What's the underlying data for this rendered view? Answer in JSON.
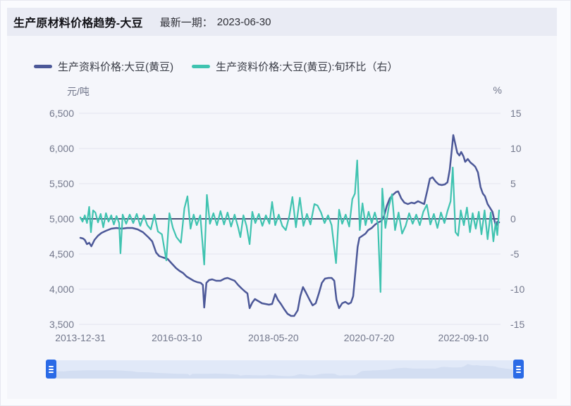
{
  "page": {
    "title": "生产原材料价格趋势-大豆",
    "subtitle_label": "最新一期：",
    "latest_date": "2023-06-30"
  },
  "legend": {
    "items": [
      {
        "label": "生产资料价格:大豆(黄豆)",
        "color": "#4c5898"
      },
      {
        "label": "生产资料价格:大豆(黄豆):旬环比（右）",
        "color": "#3fc3b0"
      }
    ]
  },
  "datazoom": {
    "left_handle_icon": "grip-lines-icon",
    "right_handle_icon": "grip-lines-icon",
    "handle_color": "#2a6ae6",
    "track_color": "#e1e9f8",
    "silhouette_color": "#d3def2"
  },
  "colors": {
    "header_bg": "#e9ebf4",
    "card_bg": "#f5f6fb",
    "grid_line": "#e2e4ef",
    "zero_line": "#4a5076",
    "axis_text": "#73788c",
    "price_line": "#4c5898",
    "pct_line": "#3fc3b0"
  },
  "chart_data": {
    "type": "line",
    "title": "生产原材料价格趋势-大豆",
    "legend_position": "top",
    "grid": true,
    "x_axis": {
      "range_years": [
        2014.0,
        2023.5
      ],
      "ticks": [
        {
          "label": "2013-12-31",
          "year": 2014.0
        },
        {
          "label": "2016-03-10",
          "year": 2016.19
        },
        {
          "label": "2018-05-20",
          "year": 2018.38
        },
        {
          "label": "2020-07-20",
          "year": 2020.55
        },
        {
          "label": "2022-09-10",
          "year": 2022.69
        }
      ]
    },
    "y_left": {
      "unit": "元/吨",
      "min": 3500,
      "max": 6500,
      "tick_labels": [
        "6,500",
        "6,000",
        "5,500",
        "5,000",
        "4,500",
        "4,000",
        "3,500"
      ]
    },
    "y_right": {
      "unit": "%",
      "min": -15,
      "max": 15,
      "tick_labels": [
        "15",
        "10",
        "5",
        "0",
        "-5",
        "-10",
        "-15"
      ]
    },
    "zero_line": {
      "axis": "right",
      "value": 0
    },
    "series": [
      {
        "name": "生产资料价格:大豆(黄豆)",
        "axis": "left",
        "color": "#4c5898",
        "line_width": 2.5,
        "points": [
          [
            2014.0,
            4730
          ],
          [
            2014.06,
            4720
          ],
          [
            2014.1,
            4700
          ],
          [
            2014.15,
            4640
          ],
          [
            2014.2,
            4660
          ],
          [
            2014.25,
            4610
          ],
          [
            2014.32,
            4700
          ],
          [
            2014.4,
            4760
          ],
          [
            2014.48,
            4800
          ],
          [
            2014.58,
            4830
          ],
          [
            2014.7,
            4860
          ],
          [
            2014.82,
            4870
          ],
          [
            2014.94,
            4860
          ],
          [
            2015.06,
            4870
          ],
          [
            2015.18,
            4870
          ],
          [
            2015.3,
            4850
          ],
          [
            2015.42,
            4810
          ],
          [
            2015.54,
            4740
          ],
          [
            2015.63,
            4680
          ],
          [
            2015.72,
            4520
          ],
          [
            2015.79,
            4470
          ],
          [
            2015.88,
            4450
          ],
          [
            2015.98,
            4430
          ],
          [
            2016.08,
            4360
          ],
          [
            2016.17,
            4300
          ],
          [
            2016.25,
            4260
          ],
          [
            2016.33,
            4230
          ],
          [
            2016.41,
            4180
          ],
          [
            2016.49,
            4150
          ],
          [
            2016.57,
            4120
          ],
          [
            2016.65,
            4100
          ],
          [
            2016.73,
            4090
          ],
          [
            2016.78,
            4060
          ],
          [
            2016.81,
            3740
          ],
          [
            2016.86,
            4090
          ],
          [
            2016.92,
            4130
          ],
          [
            2016.99,
            4140
          ],
          [
            2017.08,
            4120
          ],
          [
            2017.18,
            4120
          ],
          [
            2017.27,
            4150
          ],
          [
            2017.34,
            4160
          ],
          [
            2017.42,
            4140
          ],
          [
            2017.5,
            4120
          ],
          [
            2017.58,
            4060
          ],
          [
            2017.66,
            4010
          ],
          [
            2017.73,
            3970
          ],
          [
            2017.79,
            3940
          ],
          [
            2017.84,
            3730
          ],
          [
            2017.9,
            3810
          ],
          [
            2017.96,
            3860
          ],
          [
            2018.04,
            3830
          ],
          [
            2018.12,
            3800
          ],
          [
            2018.2,
            3790
          ],
          [
            2018.28,
            3780
          ],
          [
            2018.35,
            3790
          ],
          [
            2018.42,
            3930
          ],
          [
            2018.48,
            3850
          ],
          [
            2018.55,
            3790
          ],
          [
            2018.62,
            3720
          ],
          [
            2018.7,
            3650
          ],
          [
            2018.78,
            3620
          ],
          [
            2018.85,
            3620
          ],
          [
            2018.93,
            3700
          ],
          [
            2018.99,
            3900
          ],
          [
            2019.05,
            4030
          ],
          [
            2019.12,
            3950
          ],
          [
            2019.2,
            3850
          ],
          [
            2019.27,
            3770
          ],
          [
            2019.34,
            3800
          ],
          [
            2019.41,
            3940
          ],
          [
            2019.48,
            4090
          ],
          [
            2019.55,
            4150
          ],
          [
            2019.63,
            4160
          ],
          [
            2019.7,
            4160
          ],
          [
            2019.76,
            4120
          ],
          [
            2019.81,
            3850
          ],
          [
            2019.87,
            3730
          ],
          [
            2019.94,
            3800
          ],
          [
            2020.01,
            3820
          ],
          [
            2020.08,
            3790
          ],
          [
            2020.14,
            3810
          ],
          [
            2020.19,
            3900
          ],
          [
            2020.24,
            4250
          ],
          [
            2020.29,
            4600
          ],
          [
            2020.33,
            4730
          ],
          [
            2020.4,
            4760
          ],
          [
            2020.47,
            4790
          ],
          [
            2020.53,
            4840
          ],
          [
            2020.61,
            4870
          ],
          [
            2020.69,
            4920
          ],
          [
            2020.76,
            4950
          ],
          [
            2020.83,
            4970
          ],
          [
            2020.89,
            5040
          ],
          [
            2020.95,
            5180
          ],
          [
            2021.02,
            5290
          ],
          [
            2021.09,
            5340
          ],
          [
            2021.16,
            5380
          ],
          [
            2021.21,
            5390
          ],
          [
            2021.28,
            5290
          ],
          [
            2021.35,
            5230
          ],
          [
            2021.43,
            5210
          ],
          [
            2021.51,
            5230
          ],
          [
            2021.58,
            5220
          ],
          [
            2021.66,
            5250
          ],
          [
            2021.73,
            5230
          ],
          [
            2021.8,
            5210
          ],
          [
            2021.87,
            5400
          ],
          [
            2021.93,
            5570
          ],
          [
            2021.99,
            5590
          ],
          [
            2022.06,
            5530
          ],
          [
            2022.13,
            5490
          ],
          [
            2022.2,
            5480
          ],
          [
            2022.27,
            5490
          ],
          [
            2022.33,
            5520
          ],
          [
            2022.38,
            5700
          ],
          [
            2022.43,
            6000
          ],
          [
            2022.46,
            6190
          ],
          [
            2022.5,
            6080
          ],
          [
            2022.55,
            5940
          ],
          [
            2022.6,
            5900
          ],
          [
            2022.64,
            5950
          ],
          [
            2022.69,
            5890
          ],
          [
            2022.73,
            5810
          ],
          [
            2022.79,
            5850
          ],
          [
            2022.85,
            5800
          ],
          [
            2022.91,
            5770
          ],
          [
            2022.96,
            5740
          ],
          [
            2023.02,
            5660
          ],
          [
            2023.08,
            5450
          ],
          [
            2023.13,
            5360
          ],
          [
            2023.18,
            5320
          ],
          [
            2023.24,
            5210
          ],
          [
            2023.3,
            5150
          ],
          [
            2023.35,
            5100
          ],
          [
            2023.39,
            4990
          ],
          [
            2023.43,
            4890
          ],
          [
            2023.46,
            4960
          ],
          [
            2023.5,
            4950
          ]
        ]
      },
      {
        "name": "生产资料价格:大豆(黄豆):旬环比（右）",
        "axis": "right",
        "color": "#3fc3b0",
        "line_width": 2.2,
        "points": [
          [
            2014.0,
            0.2
          ],
          [
            2014.05,
            -0.4
          ],
          [
            2014.1,
            0.5
          ],
          [
            2014.15,
            -0.6
          ],
          [
            2014.2,
            1.7
          ],
          [
            2014.24,
            -1.9
          ],
          [
            2014.29,
            1.2
          ],
          [
            2014.34,
            0.9
          ],
          [
            2014.4,
            -0.5
          ],
          [
            2014.46,
            0.7
          ],
          [
            2014.52,
            -1.2
          ],
          [
            2014.58,
            0.8
          ],
          [
            2014.64,
            -0.4
          ],
          [
            2014.7,
            0.5
          ],
          [
            2014.76,
            -0.8
          ],
          [
            2014.82,
            0.4
          ],
          [
            2014.88,
            -0.6
          ],
          [
            2014.91,
            -4.9
          ],
          [
            2014.96,
            0.6
          ],
          [
            2015.04,
            -0.7
          ],
          [
            2015.12,
            0.6
          ],
          [
            2015.2,
            -0.6
          ],
          [
            2015.28,
            0.7
          ],
          [
            2015.36,
            -1.0
          ],
          [
            2015.44,
            0.5
          ],
          [
            2015.52,
            -0.9
          ],
          [
            2015.6,
            -1.5
          ],
          [
            2015.68,
            0.6
          ],
          [
            2015.76,
            -1.8
          ],
          [
            2015.85,
            -2.2
          ],
          [
            2015.95,
            -5.9
          ],
          [
            2016.02,
            0.8
          ],
          [
            2016.1,
            -1.3
          ],
          [
            2016.18,
            -2.6
          ],
          [
            2016.28,
            -3.4
          ],
          [
            2016.36,
            1.5
          ],
          [
            2016.43,
            3.2
          ],
          [
            2016.5,
            -1.4
          ],
          [
            2016.57,
            0.6
          ],
          [
            2016.64,
            -0.9
          ],
          [
            2016.72,
            0.5
          ],
          [
            2016.81,
            -6.5
          ],
          [
            2016.87,
            3.4
          ],
          [
            2016.94,
            -0.7
          ],
          [
            2017.02,
            0.8
          ],
          [
            2017.1,
            -0.9
          ],
          [
            2017.18,
            1.1
          ],
          [
            2017.26,
            -0.8
          ],
          [
            2017.34,
            0.9
          ],
          [
            2017.42,
            -1.1
          ],
          [
            2017.5,
            0.6
          ],
          [
            2017.58,
            -1.2
          ],
          [
            2017.63,
            -2.6
          ],
          [
            2017.7,
            0.5
          ],
          [
            2017.77,
            -1.0
          ],
          [
            2017.84,
            -3.6
          ],
          [
            2017.9,
            1.0
          ],
          [
            2017.97,
            -0.6
          ],
          [
            2018.05,
            0.7
          ],
          [
            2018.13,
            -1.0
          ],
          [
            2018.21,
            0.5
          ],
          [
            2018.29,
            -0.7
          ],
          [
            2018.35,
            2.4
          ],
          [
            2018.42,
            -0.9
          ],
          [
            2018.5,
            0.6
          ],
          [
            2018.58,
            -1.0
          ],
          [
            2018.66,
            -1.6
          ],
          [
            2018.74,
            0.4
          ],
          [
            2018.81,
            3.1
          ],
          [
            2018.89,
            -1.2
          ],
          [
            2018.98,
            3.0
          ],
          [
            2019.06,
            -1.0
          ],
          [
            2019.14,
            0.7
          ],
          [
            2019.22,
            -0.8
          ],
          [
            2019.31,
            2.1
          ],
          [
            2019.38,
            1.9
          ],
          [
            2019.46,
            0.9
          ],
          [
            2019.54,
            -0.6
          ],
          [
            2019.62,
            0.5
          ],
          [
            2019.7,
            -0.9
          ],
          [
            2019.8,
            -6.3
          ],
          [
            2019.87,
            1.3
          ],
          [
            2019.94,
            -0.7
          ],
          [
            2020.02,
            0.6
          ],
          [
            2020.1,
            -1.1
          ],
          [
            2020.17,
            2.8
          ],
          [
            2020.23,
            3.6
          ],
          [
            2020.28,
            8.3
          ],
          [
            2020.34,
            -1.6
          ],
          [
            2020.4,
            2.2
          ],
          [
            2020.47,
            -0.9
          ],
          [
            2020.54,
            1.0
          ],
          [
            2020.61,
            -0.6
          ],
          [
            2020.68,
            0.9
          ],
          [
            2020.75,
            -0.7
          ],
          [
            2020.81,
            -10.4
          ],
          [
            2020.85,
            4.3
          ],
          [
            2020.92,
            -1.3
          ],
          [
            2021.0,
            1.8
          ],
          [
            2021.07,
            3.5
          ],
          [
            2021.14,
            -1.6
          ],
          [
            2021.22,
            0.9
          ],
          [
            2021.3,
            -2.1
          ],
          [
            2021.38,
            -1.0
          ],
          [
            2021.46,
            0.8
          ],
          [
            2021.54,
            -0.7
          ],
          [
            2021.62,
            0.6
          ],
          [
            2021.7,
            -0.9
          ],
          [
            2021.78,
            1.0
          ],
          [
            2021.86,
            2.0
          ],
          [
            2021.94,
            -0.8
          ],
          [
            2022.02,
            0.7
          ],
          [
            2022.1,
            -1.3
          ],
          [
            2022.18,
            0.9
          ],
          [
            2022.26,
            -0.6
          ],
          [
            2022.33,
            1.1
          ],
          [
            2022.4,
            2.5
          ],
          [
            2022.45,
            7.3
          ],
          [
            2022.51,
            -1.9
          ],
          [
            2022.57,
            -2.4
          ],
          [
            2022.63,
            1.2
          ],
          [
            2022.7,
            -0.9
          ],
          [
            2022.77,
            1.6
          ],
          [
            2022.84,
            -1.9
          ],
          [
            2022.9,
            0.8
          ],
          [
            2022.97,
            -1.4
          ],
          [
            2023.04,
            1.0
          ],
          [
            2023.1,
            -2.2
          ],
          [
            2023.17,
            1.2
          ],
          [
            2023.24,
            -2.9
          ],
          [
            2023.31,
            0.9
          ],
          [
            2023.37,
            -3.2
          ],
          [
            2023.42,
            -0.6
          ],
          [
            2023.46,
            -2.3
          ],
          [
            2023.5,
            1.2
          ]
        ]
      }
    ]
  }
}
